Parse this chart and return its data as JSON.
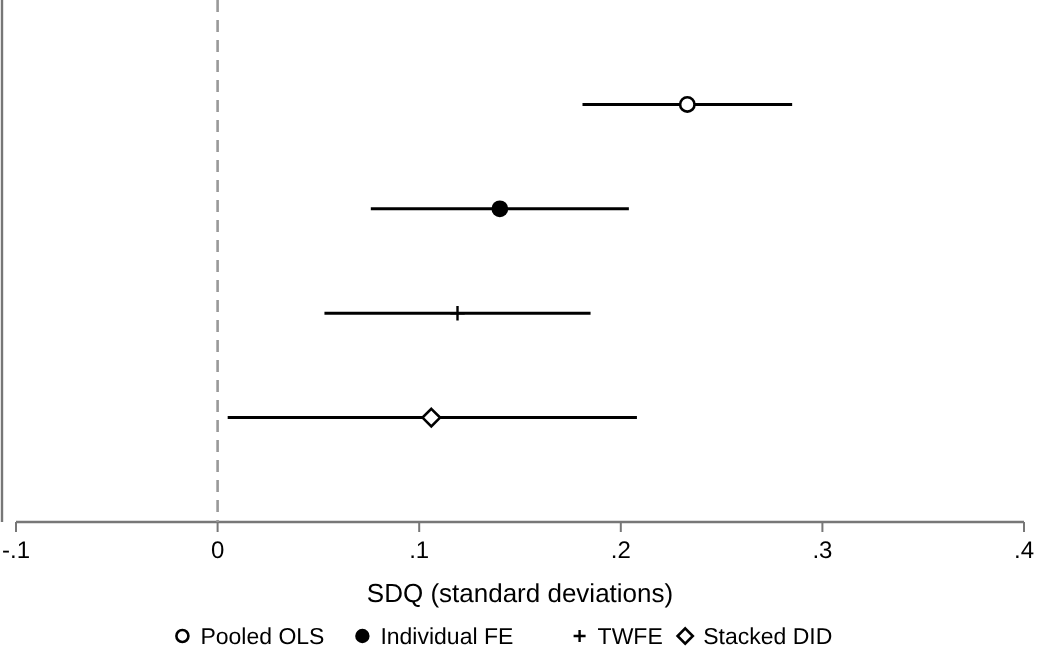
{
  "chart_data": {
    "type": "scatter",
    "orientation": "horizontal",
    "xlabel": "SDQ (standard deviations)",
    "categories": [
      null,
      null,
      null,
      null
    ],
    "series": [
      {
        "name": "Pooled OLS",
        "color": "#000000",
        "marker": "circle-open",
        "values": [
          0.233,
          null,
          null,
          null
        ],
        "errors": [
          [
            0.181,
            0.285
          ],
          null,
          null,
          null
        ]
      },
      {
        "name": "Individual FE",
        "color": "#000000",
        "marker": "circle",
        "values": [
          null,
          0.14,
          null,
          null
        ],
        "errors": [
          null,
          [
            0.076,
            0.204
          ],
          null,
          null
        ]
      },
      {
        "name": "TWFE",
        "color": "#000000",
        "marker": "cross",
        "values": [
          null,
          null,
          0.119,
          null
        ],
        "errors": [
          null,
          null,
          [
            0.053,
            0.185
          ],
          null
        ]
      },
      {
        "name": "Stacked DID",
        "color": "#000000",
        "marker": "diamond",
        "values": [
          null,
          null,
          null,
          0.106
        ],
        "errors": [
          null,
          null,
          null,
          [
            0.005,
            0.208
          ]
        ]
      }
    ],
    "xlim": [
      -0.1,
      0.4
    ],
    "xticks": [
      {
        "value": -0.1,
        "label": "-.1"
      },
      0,
      {
        "value": 0.1,
        "label": ".1"
      },
      {
        "value": 0.2,
        "label": ".2"
      },
      {
        "value": 0.3,
        "label": ".3"
      },
      {
        "value": 0.4,
        "label": ".4"
      }
    ],
    "ref_lines": [
      {
        "axis": "x",
        "value": 0,
        "color": "#999999",
        "line_style": "dashed"
      }
    ],
    "grid": false,
    "legend": "bottom",
    "tick_labels": "x"
  }
}
